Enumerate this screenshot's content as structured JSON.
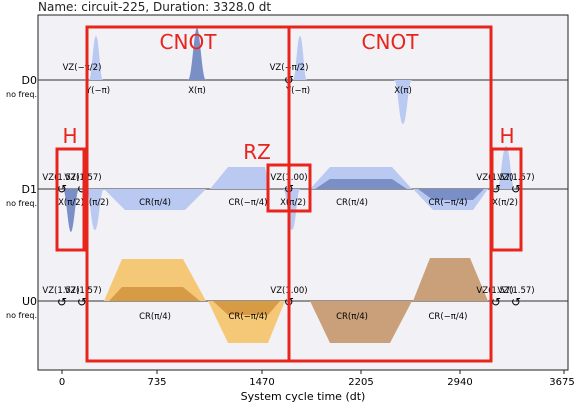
{
  "title": "Name: circuit-225, Duration: 3328.0 dt",
  "xlabel": "System cycle time (dt)",
  "xticks": [
    "0",
    "735",
    "1470",
    "2205",
    "2940",
    "3675"
  ],
  "channels": [
    {
      "name": "D0",
      "freq": "no freq."
    },
    {
      "name": "D1",
      "freq": "no freq."
    },
    {
      "name": "U0",
      "freq": "no freq."
    }
  ],
  "colors": {
    "drive_dark": "#7b8fc7",
    "drive_light": "#b9c9f2",
    "u0_orange": "#f5c878",
    "u0_dark": "#d89b45",
    "u0_brown": "#c9a07a",
    "frame": "#e8251c",
    "background": "#f2f2f6"
  },
  "gate_labels": {
    "h_left": "H",
    "cnot1": "CNOT",
    "rz": "RZ",
    "cnot2": "CNOT",
    "h_right": "H"
  },
  "annotations": {
    "d0_vz1": "VZ(−π/2)",
    "d0_y1": "Y(−π)",
    "d0_x1": "X(π)",
    "d0_vz2": "VZ(−π/2)",
    "d0_y2": "Y(−π)",
    "d0_x2": "X(π)",
    "d1_vz1": "VZ(1.57)",
    "d1_vz2": "VZ(1.57)",
    "d1_x1": "X(π/2)",
    "d1_x2": "X(π/2)",
    "d1_cr1": "CR(π/4)",
    "d1_cr2": "CR(−π/4)",
    "d1_vz3": "VZ(1.00)",
    "d1_x3": "X(π/2)",
    "d1_cr3": "CR(π/4)",
    "d1_cr4": "CR(−π/4)",
    "d1_vz4": "VZ(1.57)",
    "d1_vz5": "VZ(1.57)",
    "d1_x4": "X(π/2)",
    "u0_vz1": "VZ(1.57)",
    "u0_vz2": "VZ(1.57)",
    "u0_cr1": "CR(π/4)",
    "u0_cr2": "CR(−π/4)",
    "u0_vz3": "VZ(1.00)",
    "u0_cr3": "CR(π/4)",
    "u0_cr4": "CR(−π/4)",
    "u0_vz4": "VZ(1.57)",
    "u0_vz5": "VZ(1.57)"
  },
  "phase_symbol": "↺"
}
